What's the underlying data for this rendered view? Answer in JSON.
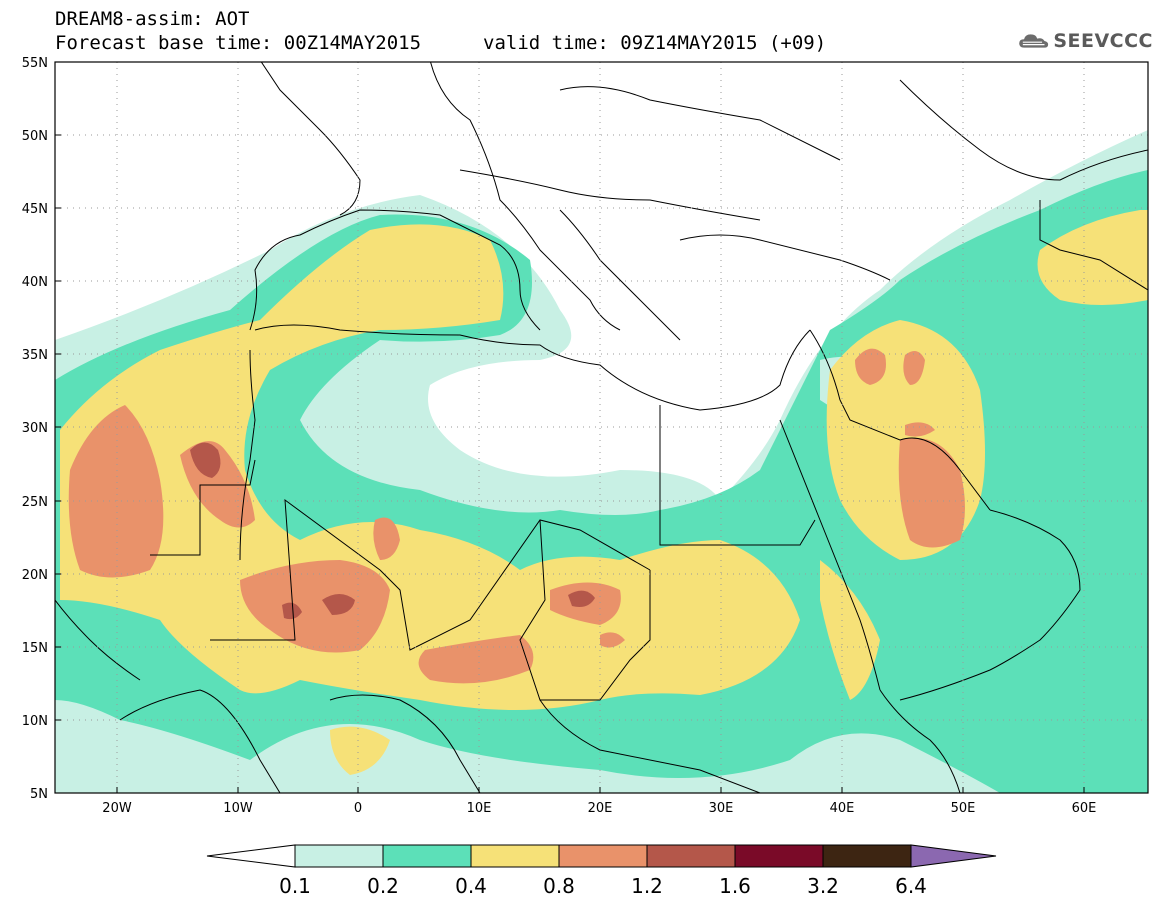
{
  "header": {
    "model_line": "DREAM8-assim: AOT",
    "base_time_line": "Forecast base time: 00Z14MAY2015",
    "valid_time_line": "valid time: 09Z14MAY2015 (+09)"
  },
  "logo": {
    "text": "SEEVCCC",
    "icon": "cloud-icon"
  },
  "map": {
    "lat_range": [
      5,
      55
    ],
    "lon_range": [
      -25,
      65
    ],
    "lat_labels": [
      "55N",
      "50N",
      "45N",
      "40N",
      "35N",
      "30N",
      "25N",
      "20N",
      "15N",
      "10N",
      "5N"
    ],
    "lon_labels": [
      "20W",
      "10W",
      "0",
      "10E",
      "20E",
      "30E",
      "40E",
      "50E",
      "60E"
    ],
    "grid": "dotted"
  },
  "legend": {
    "levels": [
      "0.1",
      "0.2",
      "0.4",
      "0.8",
      "1.2",
      "1.6",
      "3.2",
      "6.4"
    ],
    "colors": [
      "#c8f0e4",
      "#5ce0b8",
      "#f6e178",
      "#e9926a",
      "#b4574a",
      "#7a0a28",
      "#3d2512",
      "#8b68b0"
    ],
    "under_color": "#ffffff"
  }
}
